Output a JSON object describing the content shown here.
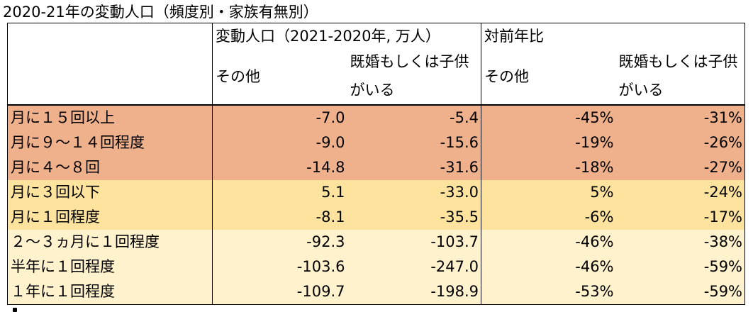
{
  "title": "2020-21年の変動人口（頻度別・家族有無別）",
  "headers": {
    "group1": "変動人口（2021-2020年, 万人）",
    "group2": "対前年比",
    "col_other": "その他",
    "col_family_line1": "既婚もしくは子供",
    "col_family_line2": "がいる"
  },
  "rows": [
    {
      "label": "月に１５回以上",
      "pop_other": "-7.0",
      "pop_family": "-5.4",
      "yoy_other": "-45%",
      "yoy_family": "-31%",
      "group": "high"
    },
    {
      "label": "月に９～１４回程度",
      "pop_other": "-9.0",
      "pop_family": "-15.6",
      "yoy_other": "-19%",
      "yoy_family": "-26%",
      "group": "high"
    },
    {
      "label": "月に４～８回",
      "pop_other": "-14.8",
      "pop_family": "-31.6",
      "yoy_other": "-18%",
      "yoy_family": "-27%",
      "group": "high"
    },
    {
      "label": "月に３回以下",
      "pop_other": "5.1",
      "pop_family": "-33.0",
      "yoy_other": "5%",
      "yoy_family": "-24%",
      "group": "mid"
    },
    {
      "label": "月に１回程度",
      "pop_other": "-8.1",
      "pop_family": "-35.5",
      "yoy_other": "-6%",
      "yoy_family": "-17%",
      "group": "mid"
    },
    {
      "label": "２～３ヵ月に１回程度",
      "pop_other": "-92.3",
      "pop_family": "-103.7",
      "yoy_other": "-46%",
      "yoy_family": "-38%",
      "group": "low"
    },
    {
      "label": "半年に１回程度",
      "pop_other": "-103.6",
      "pop_family": "-247.0",
      "yoy_other": "-46%",
      "yoy_family": "-59%",
      "group": "low"
    },
    {
      "label": "１年に１回程度",
      "pop_other": "-109.7",
      "pop_family": "-198.9",
      "yoy_other": "-53%",
      "yoy_family": "-59%",
      "group": "low"
    }
  ],
  "colors": {
    "high": "#efb08c",
    "mid": "#fde39d",
    "low": "#fff2cc",
    "border": "#000000"
  }
}
